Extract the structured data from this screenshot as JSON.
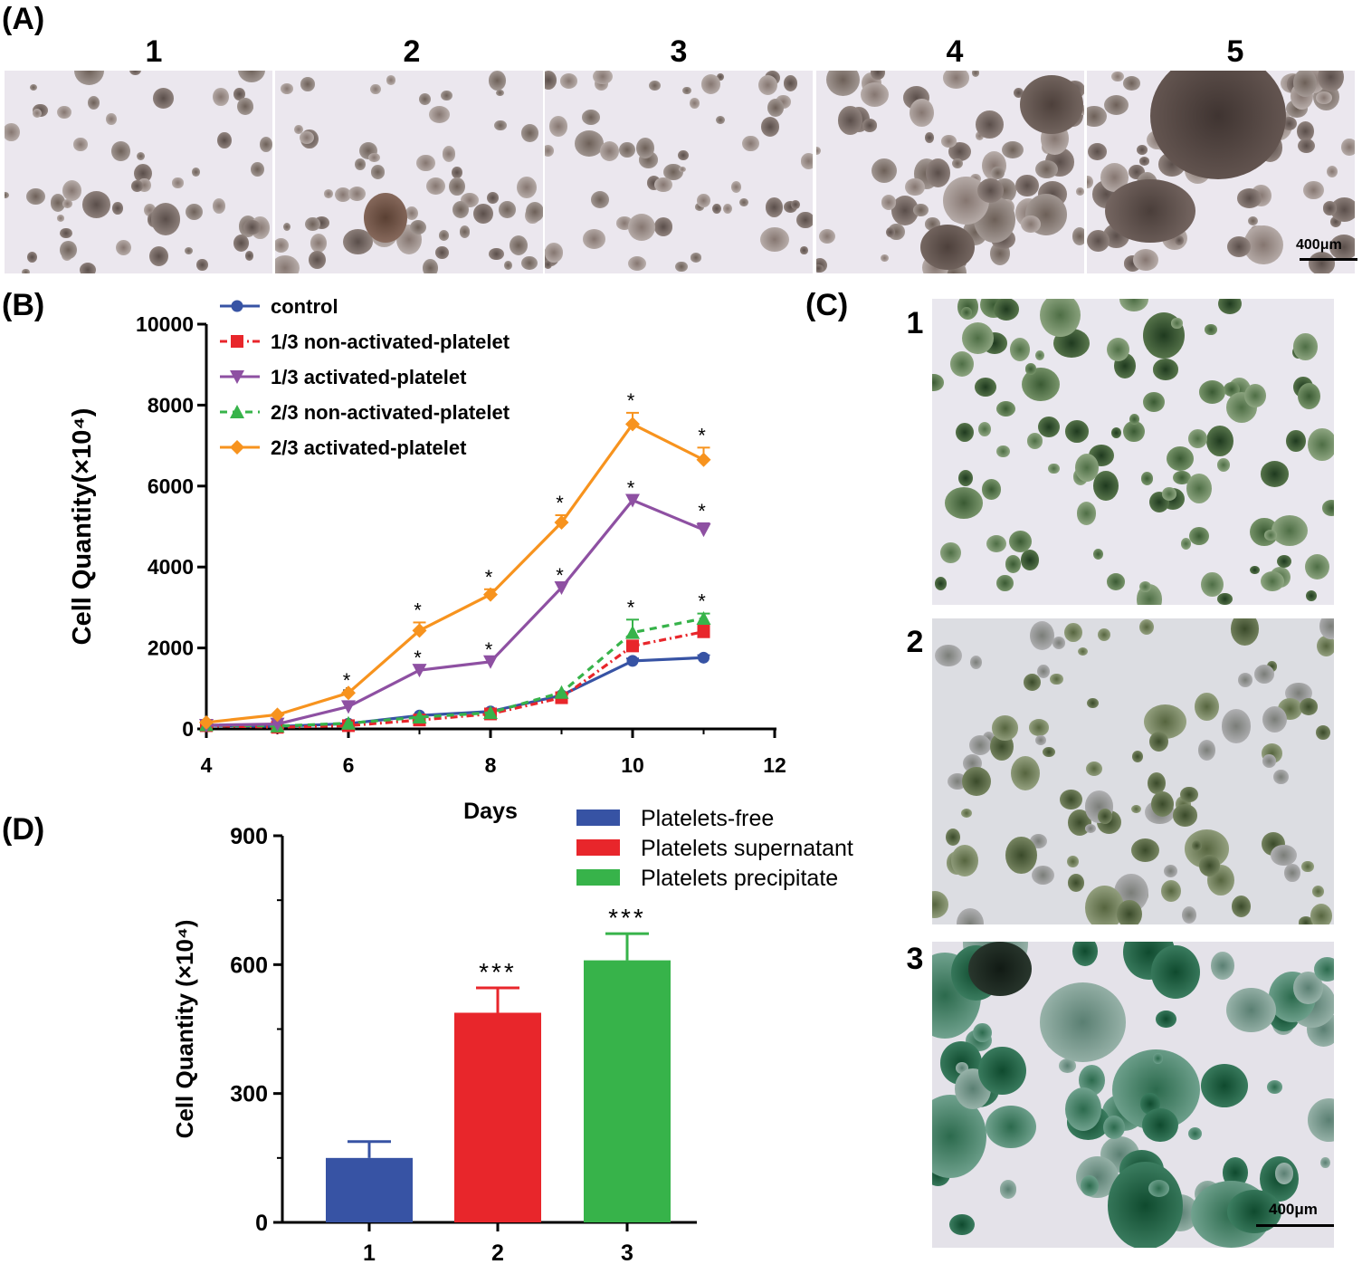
{
  "panels": {
    "a_label": "(A)",
    "b_label": "(B)",
    "c_label": "(C)",
    "d_label": "(D)"
  },
  "panel_a": {
    "photo_labels": [
      "1",
      "2",
      "3",
      "4",
      "5"
    ],
    "scale_bar": "400μm"
  },
  "panel_c": {
    "photo_labels": [
      "1",
      "2",
      "3"
    ],
    "scale_bar": "400μm"
  },
  "colors": {
    "blue": "#3753a4",
    "red": "#e8262b",
    "purple": "#8e50a2",
    "green": "#37b34a",
    "orange": "#f7931e"
  },
  "chart_data": [
    {
      "type": "line",
      "panel": "(B)",
      "xlabel": "Days",
      "ylabel": "Cell Quantity(×10⁴)",
      "xlim": [
        4,
        12
      ],
      "ylim": [
        0,
        10000
      ],
      "xticks": [
        4,
        6,
        8,
        10,
        12
      ],
      "yticks": [
        0,
        2000,
        4000,
        6000,
        8000,
        10000
      ],
      "grid": false,
      "legend_position": "top-left",
      "x": [
        4,
        5,
        6,
        7,
        8,
        9,
        10,
        11
      ],
      "series": [
        {
          "name": "control",
          "color": "#3753a4",
          "marker": "circle",
          "dash": "solid",
          "values": [
            90,
            60,
            130,
            330,
            430,
            830,
            1680,
            1760
          ],
          "errors": [
            0,
            0,
            0,
            0,
            0,
            0,
            60,
            60
          ],
          "stars": [
            false,
            false,
            false,
            false,
            false,
            false,
            false,
            false
          ]
        },
        {
          "name": "1/3 non-activated-platelet",
          "color": "#e8262b",
          "marker": "square",
          "dash": "dashdot",
          "values": [
            80,
            40,
            80,
            220,
            370,
            770,
            2050,
            2400
          ],
          "errors": [
            0,
            0,
            0,
            0,
            0,
            0,
            120,
            150
          ],
          "stars": [
            false,
            false,
            false,
            false,
            false,
            false,
            false,
            false
          ]
        },
        {
          "name": "1/3 activated-platelet",
          "color": "#8e50a2",
          "marker": "triangle-down",
          "dash": "solid",
          "values": [
            90,
            120,
            550,
            1450,
            1660,
            3490,
            5650,
            4920
          ],
          "errors": [
            0,
            0,
            0,
            0,
            0,
            0,
            0,
            160
          ],
          "stars": [
            false,
            false,
            true,
            true,
            true,
            true,
            true,
            true
          ]
        },
        {
          "name": "2/3 non-activated-platelet",
          "color": "#37b34a",
          "marker": "triangle-up",
          "dash": "dashed",
          "values": [
            100,
            70,
            140,
            290,
            400,
            900,
            2380,
            2730
          ],
          "errors": [
            0,
            0,
            0,
            0,
            0,
            0,
            320,
            120
          ],
          "stars": [
            false,
            false,
            false,
            false,
            false,
            false,
            true,
            true
          ]
        },
        {
          "name": "2/3 activated-platelet",
          "color": "#f7931e",
          "marker": "diamond",
          "dash": "solid",
          "values": [
            160,
            350,
            890,
            2430,
            3320,
            5100,
            7530,
            6650
          ],
          "errors": [
            0,
            0,
            0,
            200,
            130,
            180,
            280,
            300
          ],
          "stars": [
            false,
            false,
            true,
            true,
            true,
            true,
            true,
            true
          ]
        }
      ],
      "star_text": "*"
    },
    {
      "type": "bar",
      "panel": "(D)",
      "xlabel": "",
      "ylabel": "Cell Quantity (×10⁴)",
      "ylim": [
        0,
        900
      ],
      "yticks": [
        0,
        300,
        600,
        900
      ],
      "grid": false,
      "legend_position": "top-right",
      "categories": [
        "1",
        "2",
        "3"
      ],
      "series": [
        {
          "name": "Platelets-free",
          "color": "#3753a4",
          "value": 150,
          "error": 38,
          "significance": ""
        },
        {
          "name": "Platelets supernatant",
          "color": "#e8262b",
          "value": 488,
          "error": 58,
          "significance": "***"
        },
        {
          "name": "Platelets precipitate",
          "color": "#37b34a",
          "value": 610,
          "error": 62,
          "significance": "***"
        }
      ]
    }
  ]
}
